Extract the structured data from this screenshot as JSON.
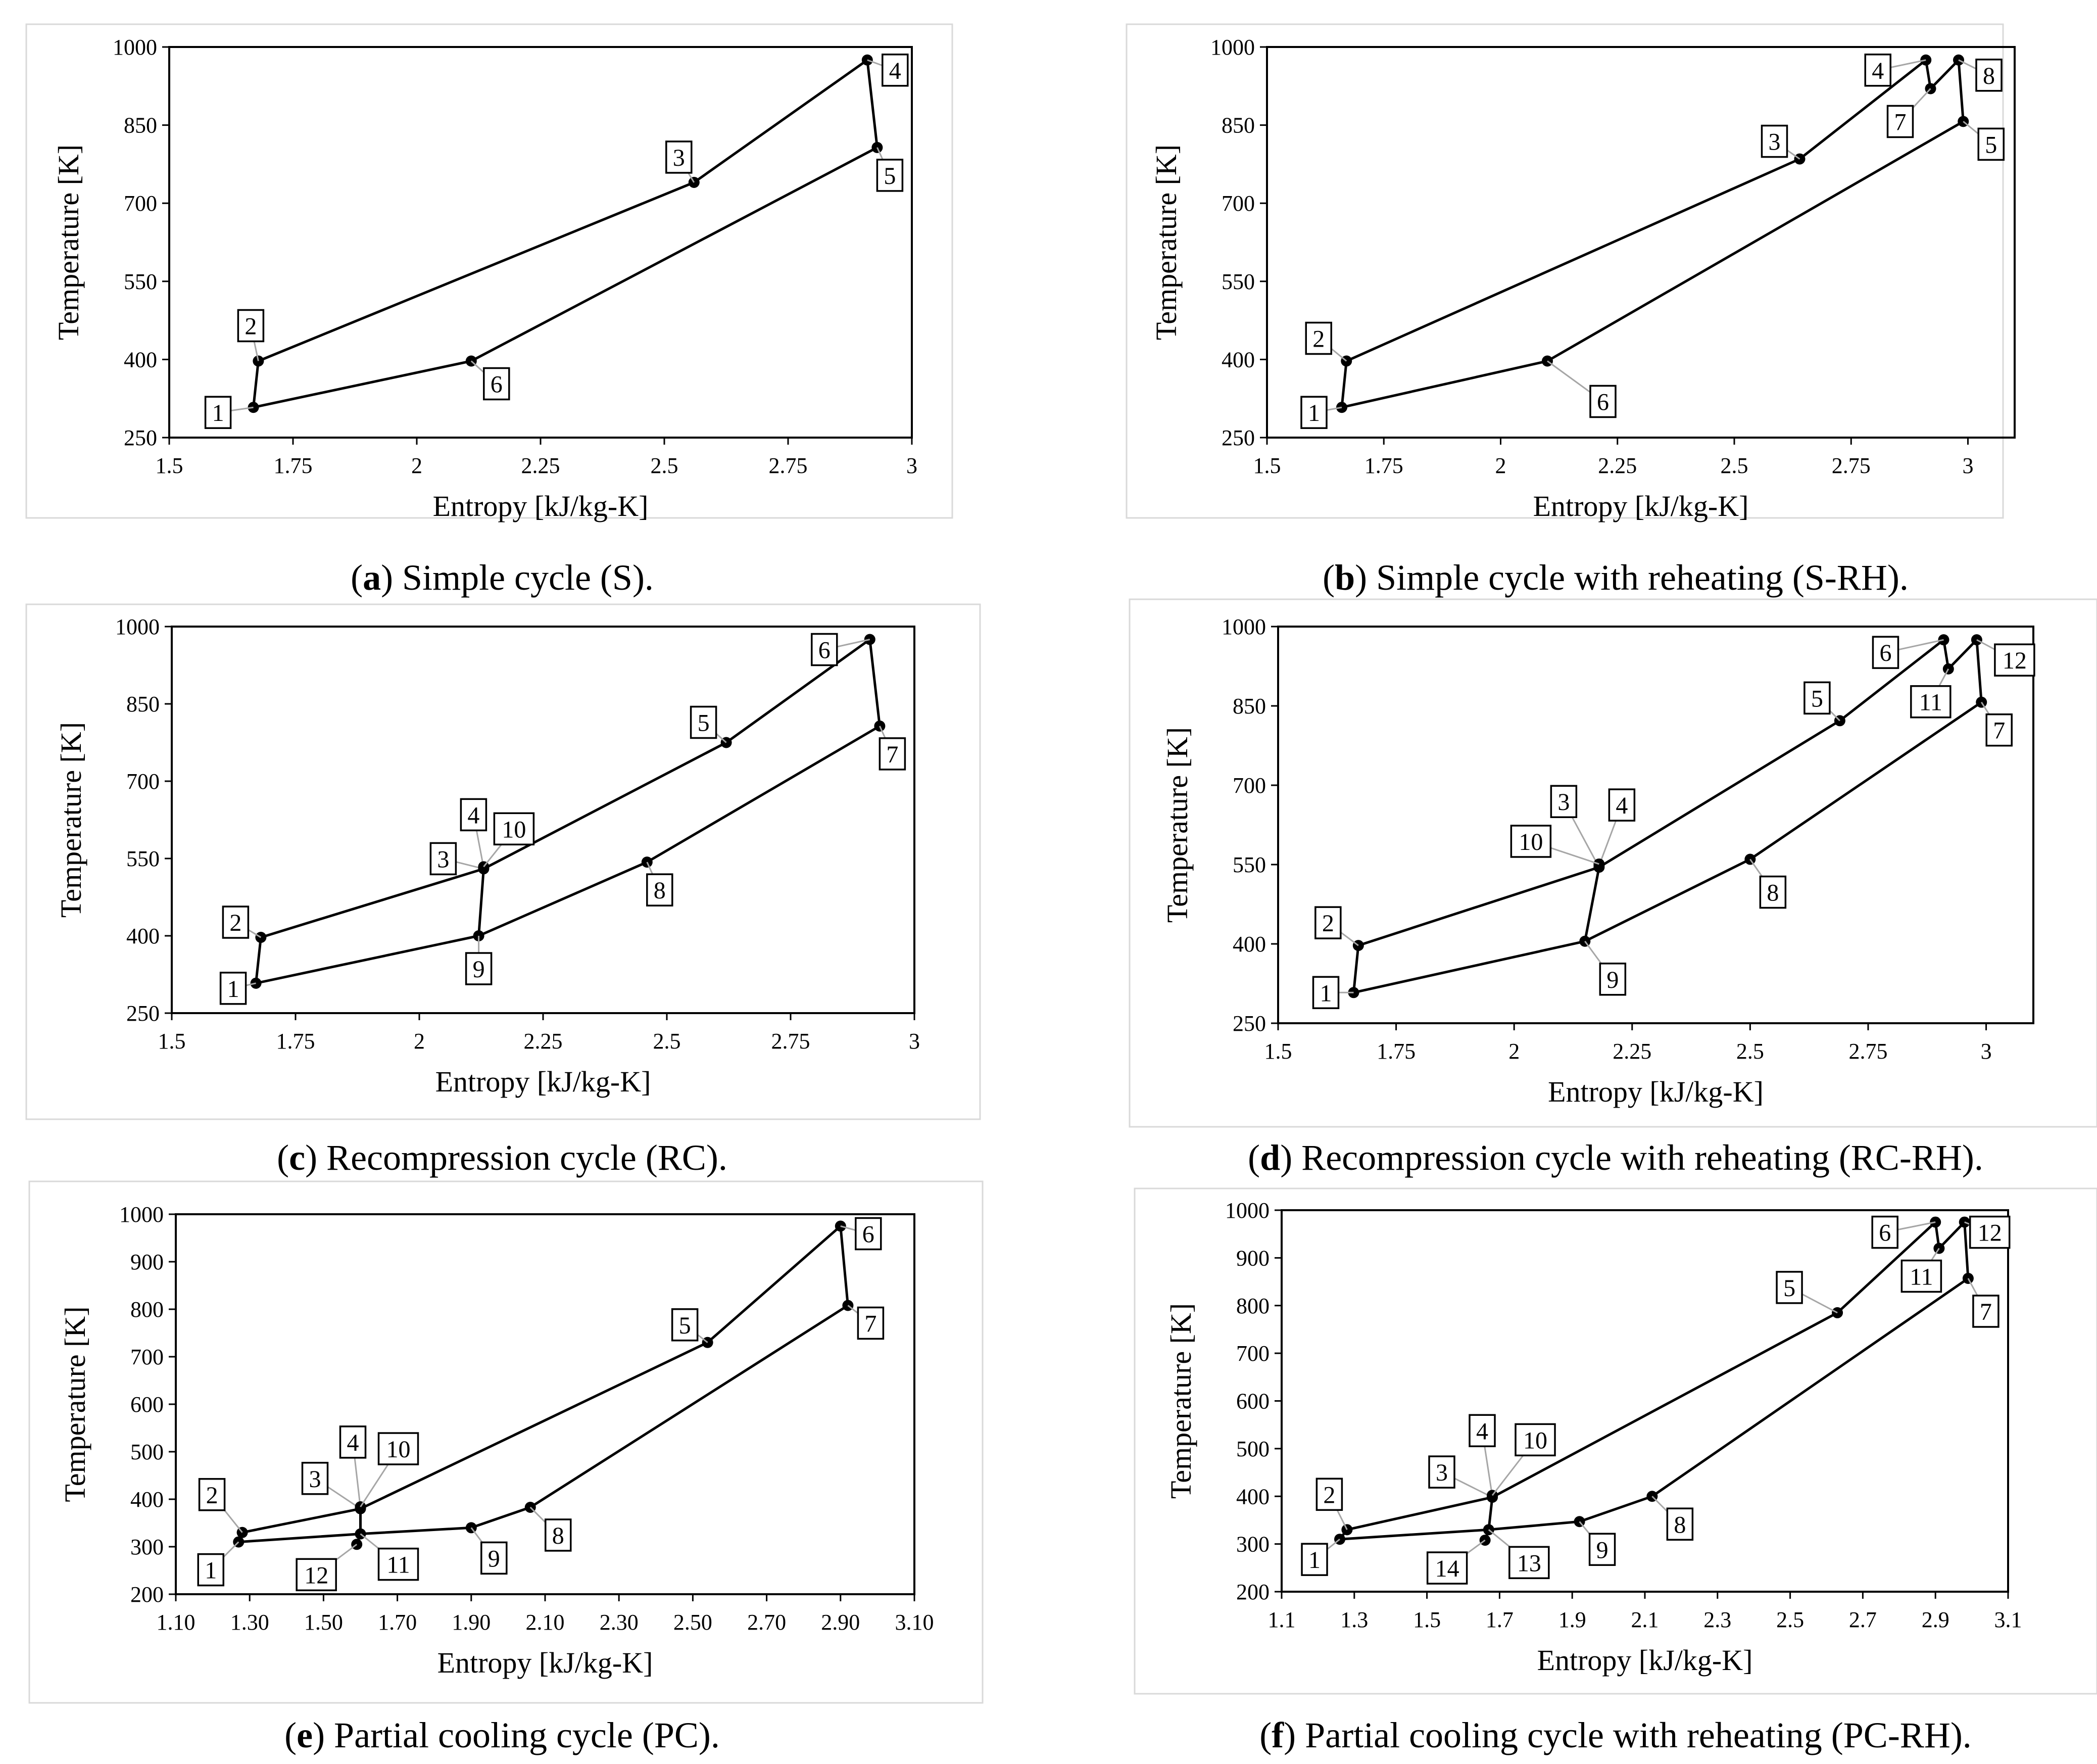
{
  "charts": [
    {
      "id": "a",
      "caption_letter": "a",
      "caption_text": ") Simple cycle (S).",
      "caption_open": "(",
      "xlabel": "Entropy [kJ/kg-K]",
      "ylabel": "Temperature [K]",
      "xlim": [
        1.5,
        3
      ],
      "ylim": [
        250,
        1000
      ],
      "xticks": [
        1.5,
        1.75,
        2,
        2.25,
        2.5,
        2.75,
        3
      ],
      "xtick_labels": [
        "1.5",
        "1.75",
        "2",
        "2.25",
        "2.5",
        "2.75",
        "3"
      ],
      "yticks": [
        250,
        400,
        550,
        700,
        850,
        1000
      ],
      "ytick_labels": [
        "250",
        "400",
        "550",
        "700",
        "850",
        "1000"
      ],
      "points": [
        {
          "label": "1",
          "s": 1.67,
          "T": 308
        },
        {
          "label": "2",
          "s": 1.68,
          "T": 397
        },
        {
          "label": "3",
          "s": 2.56,
          "T": 740
        },
        {
          "label": "4",
          "s": 2.91,
          "T": 975
        },
        {
          "label": "5",
          "s": 2.93,
          "T": 807
        },
        {
          "label": "6",
          "s": 2.11,
          "T": 397
        }
      ],
      "path": [
        "1",
        "2",
        "3",
        "4",
        "5",
        "6",
        "1"
      ]
    },
    {
      "id": "b",
      "caption_letter": "b",
      "caption_text": ") Simple cycle with reheating (S-RH).",
      "caption_open": "(",
      "xlabel": "Entropy [kJ/kg-K]",
      "ylabel": "Temperature [K]",
      "xlim": [
        1.5,
        3.1
      ],
      "ylim": [
        250,
        1000
      ],
      "xticks": [
        1.5,
        1.75,
        2,
        2.25,
        2.5,
        2.75,
        3
      ],
      "xtick_labels": [
        "1.5",
        "1.75",
        "2",
        "2.25",
        "2.5",
        "2.75",
        "3"
      ],
      "yticks": [
        250,
        400,
        550,
        700,
        850,
        1000
      ],
      "ytick_labels": [
        "250",
        "400",
        "550",
        "700",
        "850",
        "1000"
      ],
      "points": [
        {
          "label": "1",
          "s": 1.66,
          "T": 308
        },
        {
          "label": "2",
          "s": 1.67,
          "T": 397
        },
        {
          "label": "3",
          "s": 2.64,
          "T": 785
        },
        {
          "label": "4",
          "s": 2.91,
          "T": 975
        },
        {
          "label": "7",
          "s": 2.92,
          "T": 920
        },
        {
          "label": "8",
          "s": 2.98,
          "T": 975
        },
        {
          "label": "5",
          "s": 2.99,
          "T": 857
        },
        {
          "label": "6",
          "s": 2.1,
          "T": 397
        }
      ],
      "path": [
        "1",
        "2",
        "3",
        "4",
        "7",
        "8",
        "5",
        "6",
        "1"
      ]
    },
    {
      "id": "c",
      "caption_letter": "c",
      "caption_text": ") Recompression cycle (RC).",
      "caption_open": "(",
      "xlabel": "Entropy [kJ/kg-K]",
      "ylabel": "Temperature [K]",
      "xlim": [
        1.5,
        3
      ],
      "ylim": [
        250,
        1000
      ],
      "xticks": [
        1.5,
        1.75,
        2,
        2.25,
        2.5,
        2.75,
        3
      ],
      "xtick_labels": [
        "1.5",
        "1.75",
        "2",
        "2.25",
        "2.5",
        "2.75",
        "3"
      ],
      "yticks": [
        250,
        400,
        550,
        700,
        850,
        1000
      ],
      "ytick_labels": [
        "250",
        "400",
        "550",
        "700",
        "850",
        "1000"
      ],
      "points": [
        {
          "label": "1",
          "s": 1.67,
          "T": 308
        },
        {
          "label": "2",
          "s": 1.68,
          "T": 397
        },
        {
          "label": "3",
          "s": 2.13,
          "T": 530
        },
        {
          "label": "4",
          "s": 2.13,
          "T": 532
        },
        {
          "label": "10",
          "s": 2.13,
          "T": 534
        },
        {
          "label": "5",
          "s": 2.62,
          "T": 775
        },
        {
          "label": "6",
          "s": 2.91,
          "T": 975
        },
        {
          "label": "7",
          "s": 2.93,
          "T": 807
        },
        {
          "label": "8",
          "s": 2.46,
          "T": 543
        },
        {
          "label": "9",
          "s": 2.12,
          "T": 400
        }
      ],
      "path": [
        "1",
        "2",
        "3",
        "5",
        "6",
        "7",
        "8",
        "9",
        "1"
      ],
      "extra_segments": [
        [
          "9",
          "3"
        ]
      ]
    },
    {
      "id": "d",
      "caption_letter": "d",
      "caption_text": ") Recompression cycle with reheating (RC-RH).",
      "caption_open": "(",
      "xlabel": "Entropy [kJ/kg-K]",
      "ylabel": "Temperature [K]",
      "xlim": [
        1.5,
        3.1
      ],
      "ylim": [
        250,
        1000
      ],
      "xticks": [
        1.5,
        1.75,
        2,
        2.25,
        2.5,
        2.75,
        3
      ],
      "xtick_labels": [
        "1.5",
        "1.75",
        "2",
        "2.25",
        "2.5",
        "2.75",
        "3"
      ],
      "yticks": [
        250,
        400,
        550,
        700,
        850,
        1000
      ],
      "ytick_labels": [
        "250",
        "400",
        "550",
        "700",
        "850",
        "1000"
      ],
      "points": [
        {
          "label": "1",
          "s": 1.66,
          "T": 308
        },
        {
          "label": "2",
          "s": 1.67,
          "T": 397
        },
        {
          "label": "3",
          "s": 2.18,
          "T": 545
        },
        {
          "label": "4",
          "s": 2.18,
          "T": 548
        },
        {
          "label": "10",
          "s": 2.18,
          "T": 551
        },
        {
          "label": "5",
          "s": 2.69,
          "T": 822
        },
        {
          "label": "6",
          "s": 2.91,
          "T": 975
        },
        {
          "label": "11",
          "s": 2.92,
          "T": 920
        },
        {
          "label": "12",
          "s": 2.98,
          "T": 975
        },
        {
          "label": "7",
          "s": 2.99,
          "T": 857
        },
        {
          "label": "8",
          "s": 2.5,
          "T": 560
        },
        {
          "label": "9",
          "s": 2.15,
          "T": 405
        }
      ],
      "path": [
        "1",
        "2",
        "3",
        "5",
        "6",
        "11",
        "12",
        "7",
        "8",
        "9",
        "1"
      ],
      "extra_segments": [
        [
          "9",
          "3"
        ]
      ]
    },
    {
      "id": "e",
      "caption_letter": "e",
      "caption_text": ") Partial cooling cycle (PC).",
      "caption_open": "(",
      "xlabel": "Entropy [kJ/kg-K]",
      "ylabel": "Temperature [K]",
      "xlim": [
        1.1,
        3.1
      ],
      "ylim": [
        200,
        1000
      ],
      "xticks": [
        1.1,
        1.3,
        1.5,
        1.7,
        1.9,
        2.1,
        2.3,
        2.5,
        2.7,
        2.9,
        3.1
      ],
      "xtick_labels": [
        "1.10",
        "1.30",
        "1.50",
        "1.70",
        "1.90",
        "2.10",
        "2.30",
        "2.50",
        "2.70",
        "2.90",
        "3.10"
      ],
      "yticks": [
        200,
        300,
        400,
        500,
        600,
        700,
        800,
        900,
        1000
      ],
      "ytick_labels": [
        "200",
        "300",
        "400",
        "500",
        "600",
        "700",
        "800",
        "900",
        "1000"
      ],
      "points": [
        {
          "label": "1",
          "s": 1.27,
          "T": 310
        },
        {
          "label": "2",
          "s": 1.28,
          "T": 330
        },
        {
          "label": "3",
          "s": 1.6,
          "T": 380
        },
        {
          "label": "4",
          "s": 1.6,
          "T": 382
        },
        {
          "label": "10",
          "s": 1.6,
          "T": 384
        },
        {
          "label": "5",
          "s": 2.54,
          "T": 730
        },
        {
          "label": "6",
          "s": 2.9,
          "T": 975
        },
        {
          "label": "7",
          "s": 2.92,
          "T": 808
        },
        {
          "label": "8",
          "s": 2.06,
          "T": 383
        },
        {
          "label": "9",
          "s": 1.9,
          "T": 340
        },
        {
          "label": "11",
          "s": 1.6,
          "T": 327
        },
        {
          "label": "12",
          "s": 1.59,
          "T": 305
        }
      ],
      "path": [
        "1",
        "2",
        "3",
        "5",
        "6",
        "7",
        "8",
        "9",
        "11",
        "1"
      ],
      "extra_segments": [
        [
          "11",
          "3"
        ],
        [
          "12",
          "11"
        ]
      ]
    },
    {
      "id": "f",
      "caption_letter": "f",
      "caption_text": ") Partial cooling cycle with reheating (PC-RH).",
      "caption_open": "(",
      "xlabel": "Entropy [kJ/kg-K]",
      "ylabel": "Temperature [K]",
      "xlim": [
        1.1,
        3.1
      ],
      "ylim": [
        200,
        1000
      ],
      "xticks": [
        1.1,
        1.3,
        1.5,
        1.7,
        1.9,
        2.1,
        2.3,
        2.5,
        2.7,
        2.9,
        3.1
      ],
      "xtick_labels": [
        "1.1",
        "1.3",
        "1.5",
        "1.7",
        "1.9",
        "2.1",
        "2.3",
        "2.5",
        "2.7",
        "2.9",
        "3.1"
      ],
      "yticks": [
        200,
        300,
        400,
        500,
        600,
        700,
        800,
        900,
        1000
      ],
      "ytick_labels": [
        "200",
        "300",
        "400",
        "500",
        "600",
        "700",
        "800",
        "900",
        "1000"
      ],
      "points": [
        {
          "label": "1",
          "s": 1.26,
          "T": 310
        },
        {
          "label": "2",
          "s": 1.28,
          "T": 330
        },
        {
          "label": "3",
          "s": 1.68,
          "T": 398
        },
        {
          "label": "4",
          "s": 1.68,
          "T": 400
        },
        {
          "label": "10",
          "s": 1.68,
          "T": 402
        },
        {
          "label": "5",
          "s": 2.63,
          "T": 785
        },
        {
          "label": "6",
          "s": 2.9,
          "T": 975
        },
        {
          "label": "11",
          "s": 2.91,
          "T": 920
        },
        {
          "label": "12",
          "s": 2.98,
          "T": 975
        },
        {
          "label": "7",
          "s": 2.99,
          "T": 857
        },
        {
          "label": "8",
          "s": 2.12,
          "T": 400
        },
        {
          "label": "9",
          "s": 1.92,
          "T": 347
        },
        {
          "label": "13",
          "s": 1.67,
          "T": 330
        },
        {
          "label": "14",
          "s": 1.66,
          "T": 308
        }
      ],
      "path": [
        "1",
        "2",
        "3",
        "5",
        "6",
        "11",
        "12",
        "7",
        "8",
        "9",
        "13",
        "1"
      ],
      "extra_segments": [
        [
          "13",
          "3"
        ],
        [
          "14",
          "13"
        ]
      ]
    }
  ]
}
